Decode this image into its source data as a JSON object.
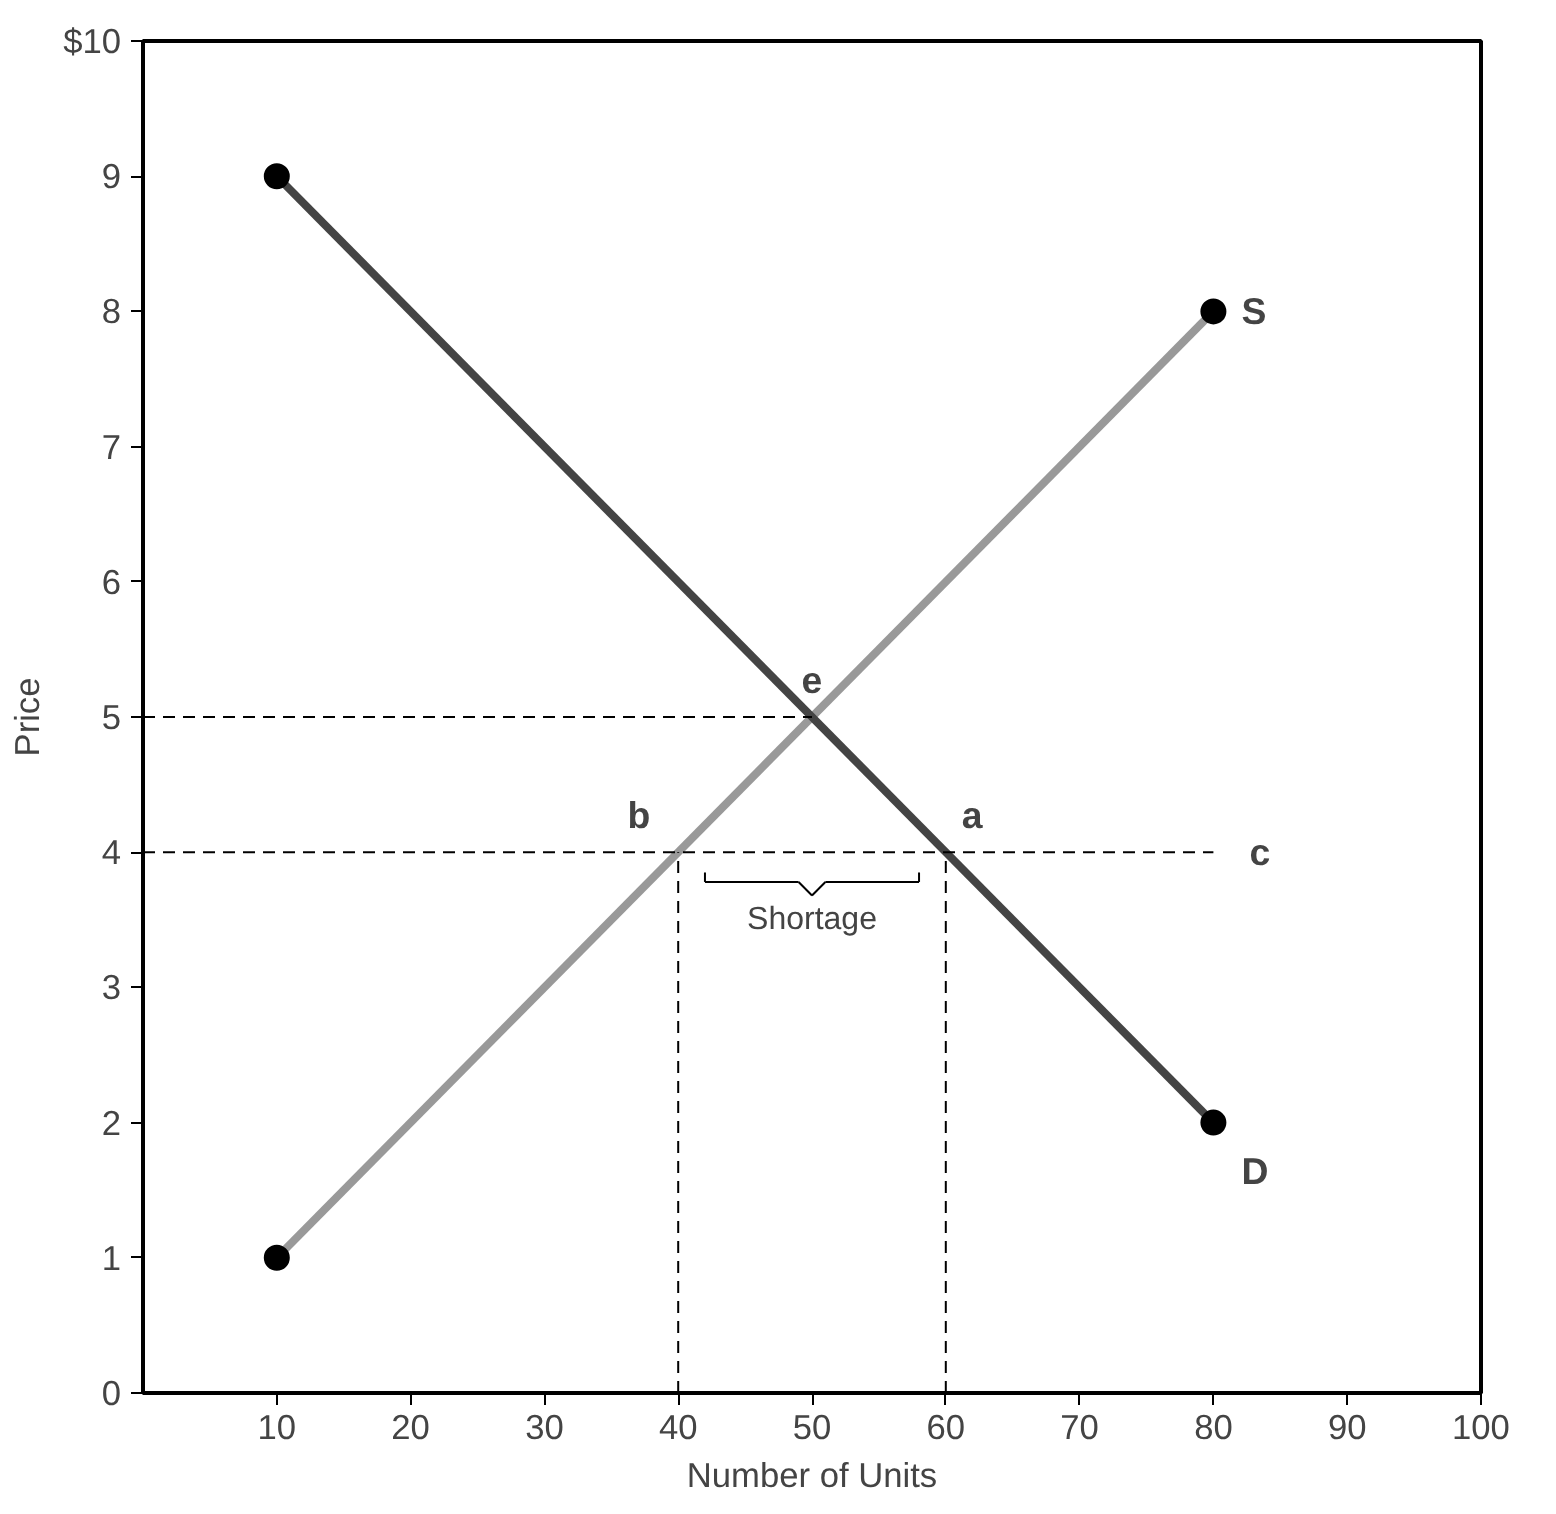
{
  "chart_data": {
    "type": "line",
    "xlabel": "Number of Units",
    "ylabel": "Price",
    "xlim": [
      0,
      100
    ],
    "ylim": [
      0,
      10
    ],
    "xticks": [
      10,
      20,
      30,
      40,
      50,
      60,
      70,
      80,
      90,
      100
    ],
    "yticks": [
      0,
      1,
      2,
      3,
      4,
      5,
      6,
      7,
      8,
      9,
      {
        "value": 10,
        "label": "$10"
      }
    ],
    "grid": false,
    "series": [
      {
        "name": "S",
        "color": "#999999",
        "x": [
          10,
          80
        ],
        "values": [
          1,
          8
        ],
        "marker": "circle"
      },
      {
        "name": "D",
        "color": "#444444",
        "x": [
          10,
          80
        ],
        "values": [
          9,
          2
        ],
        "marker": "circle"
      },
      {
        "color": "#000000",
        "x": [
          0,
          50
        ],
        "values": [
          5,
          5
        ],
        "line_style": "dashed",
        "marker": "none"
      },
      {
        "color": "#000000",
        "x": [
          0,
          80
        ],
        "values": [
          4,
          4
        ],
        "line_style": "dashed",
        "marker": "none"
      },
      {
        "color": "#000000",
        "x": [
          40,
          40
        ],
        "values": [
          0,
          4
        ],
        "line_style": "dashed",
        "marker": "none"
      },
      {
        "color": "#000000",
        "x": [
          60,
          60
        ],
        "values": [
          0,
          4
        ],
        "line_style": "dashed",
        "marker": "none"
      }
    ],
    "annotations": [
      {
        "text": "e",
        "x": 50,
        "y": 5
      },
      {
        "text": "b",
        "x": 40,
        "y": 4
      },
      {
        "text": "a",
        "x": 60,
        "y": 4
      },
      {
        "text": "c",
        "x": 80,
        "y": 4
      },
      "Shortage"
    ]
  }
}
